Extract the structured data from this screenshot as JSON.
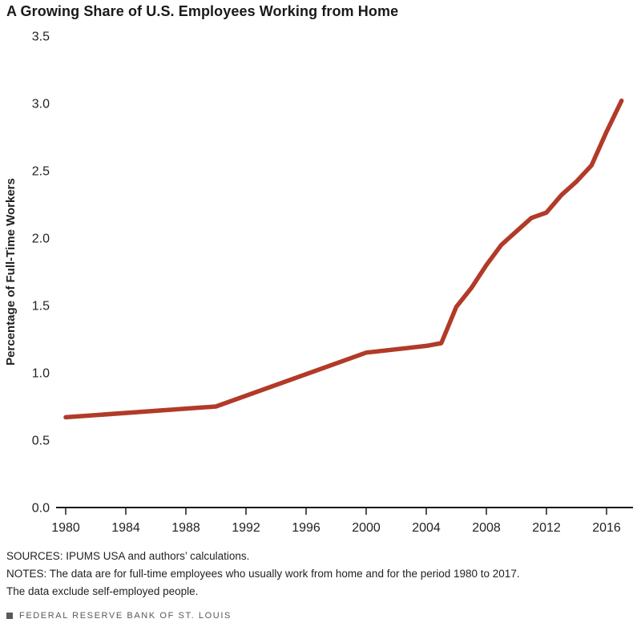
{
  "title": "A Growing Share of U.S. Employees Working from Home",
  "chart_data": {
    "type": "line",
    "title": "A Growing Share of U.S. Employees Working from Home",
    "xlabel": "",
    "ylabel": "Percentage of Full-Time Workers",
    "x": [
      1980,
      1990,
      2000,
      2004,
      2005,
      2006,
      2007,
      2008,
      2009,
      2010,
      2011,
      2012,
      2013,
      2014,
      2015,
      2016,
      2017
    ],
    "values": [
      0.67,
      0.75,
      1.15,
      1.2,
      1.22,
      1.49,
      1.63,
      1.8,
      1.95,
      2.05,
      2.15,
      2.19,
      2.32,
      2.42,
      2.54,
      2.79,
      3.02
    ],
    "x_ticks": [
      1980,
      1984,
      1988,
      1992,
      1996,
      2000,
      2004,
      2008,
      2012,
      2016
    ],
    "y_ticks": [
      0.0,
      0.5,
      1.0,
      1.5,
      2.0,
      2.5,
      3.0,
      3.5
    ],
    "xlim": [
      1980,
      2017
    ],
    "ylim": [
      0,
      3.5
    ],
    "grid": false,
    "legend": "none",
    "line_color": "#b23a28",
    "axis_color": "#1a1a1a"
  },
  "footer": {
    "sources": "SOURCES: IPUMS USA and authors’ calculations.",
    "notes_line1": "NOTES: The data are for full-time employees who usually work from home and for the period 1980 to 2017.",
    "notes_line2": "The data exclude self-employed people.",
    "brand": "FEDERAL RESERVE BANK OF ST. LOUIS"
  }
}
